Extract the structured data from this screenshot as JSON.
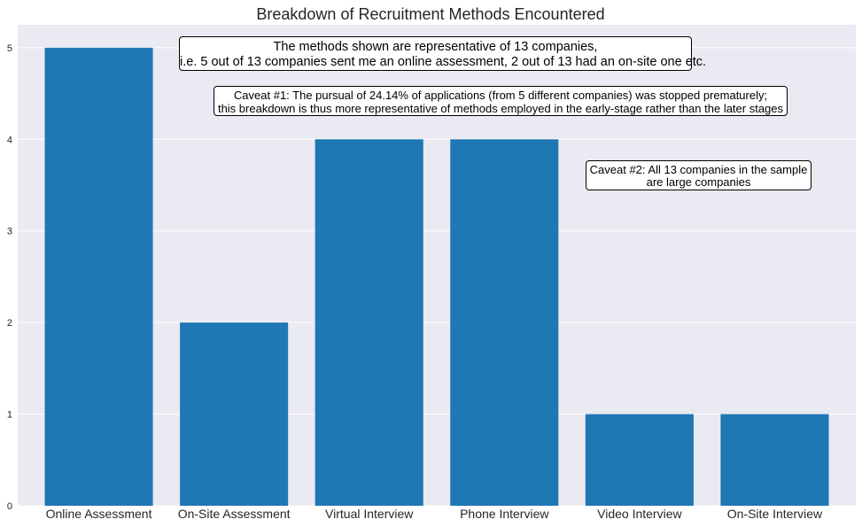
{
  "chart_data": {
    "type": "bar",
    "title": "Breakdown of Recruitment Methods Encountered",
    "xlabel": "",
    "ylabel": "",
    "categories": [
      "Online Assessment",
      "On-Site Assessment",
      "Virtual Interview",
      "Phone Interview",
      "Video Interview",
      "On-Site Interview"
    ],
    "values": [
      5,
      2,
      4,
      4,
      1,
      1
    ],
    "ylim": [
      0,
      5.25
    ],
    "yticks": [
      "0",
      "1",
      "2",
      "3",
      "4",
      "5"
    ],
    "grid": true,
    "bar_color": "#1f77b4",
    "background_color": "#eaeaf2",
    "annotations": [
      {
        "line1": "The methods shown are representative of 13 companies,",
        "line2": "i.e. 5 out of 13 companies sent me an online assessment, 2 out of 13 had an on-site one etc."
      },
      {
        "line1": "Caveat #1: The pursual of 24.14% of applications (from 5 different companies) was stopped prematurely;",
        "line2": "this breakdown is thus more representative of methods employed in the early-stage rather than the later stages"
      },
      {
        "line1": "Caveat #2: All 13 companies in the sample",
        "line2": "are large companies"
      }
    ]
  }
}
